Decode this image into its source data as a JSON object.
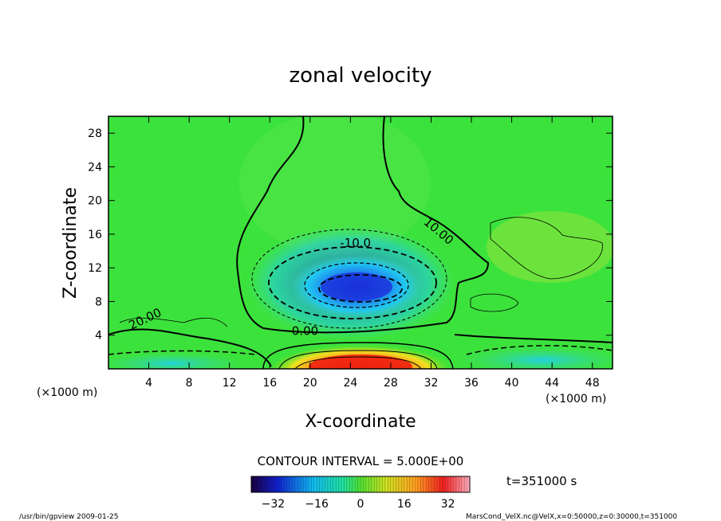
{
  "chart_data": {
    "type": "heatmap",
    "title": "zonal velocity",
    "xlabel": "X-coordinate",
    "ylabel": "Z-coordinate",
    "x_unit_label": "(×1000 m)",
    "y_unit_label": "(×1000 m)",
    "xlim": [
      0,
      50
    ],
    "ylim": [
      0,
      30
    ],
    "x_ticks": [
      4,
      8,
      12,
      16,
      20,
      24,
      28,
      32,
      36,
      40,
      44,
      48
    ],
    "y_ticks": [
      4,
      8,
      12,
      16,
      20,
      24,
      28
    ],
    "contour_interval_text": "CONTOUR INTERVAL = 5.000E+00",
    "contour_labels": [
      {
        "text": "-10.0",
        "x": 24.5,
        "y": 14.5
      },
      {
        "text": "10.00",
        "x": 32.5,
        "y": 16.0
      },
      {
        "text": "0.00",
        "x": 19.5,
        "y": 4.0
      },
      {
        "text": "20.00",
        "x": 3.8,
        "y": 5.5
      }
    ],
    "time_label": "t=351000 s",
    "colorbar": {
      "min": -40,
      "max": 40,
      "ticks": [
        -32,
        -16,
        0,
        16,
        32
      ],
      "tick_labels": [
        "−32",
        "−16",
        "0",
        "16",
        "32"
      ]
    },
    "features": [
      {
        "name": "negative core",
        "x": 24,
        "y": 10,
        "value": -25
      },
      {
        "name": "positive jet near surface",
        "x": 23,
        "y": 0.5,
        "value": 35
      }
    ]
  },
  "footer": {
    "left": "/usr/bin/gpview  2009-01-25",
    "right": "MarsCond_VelX.nc@VelX,x=0:50000,z=0:30000,t=351000"
  }
}
